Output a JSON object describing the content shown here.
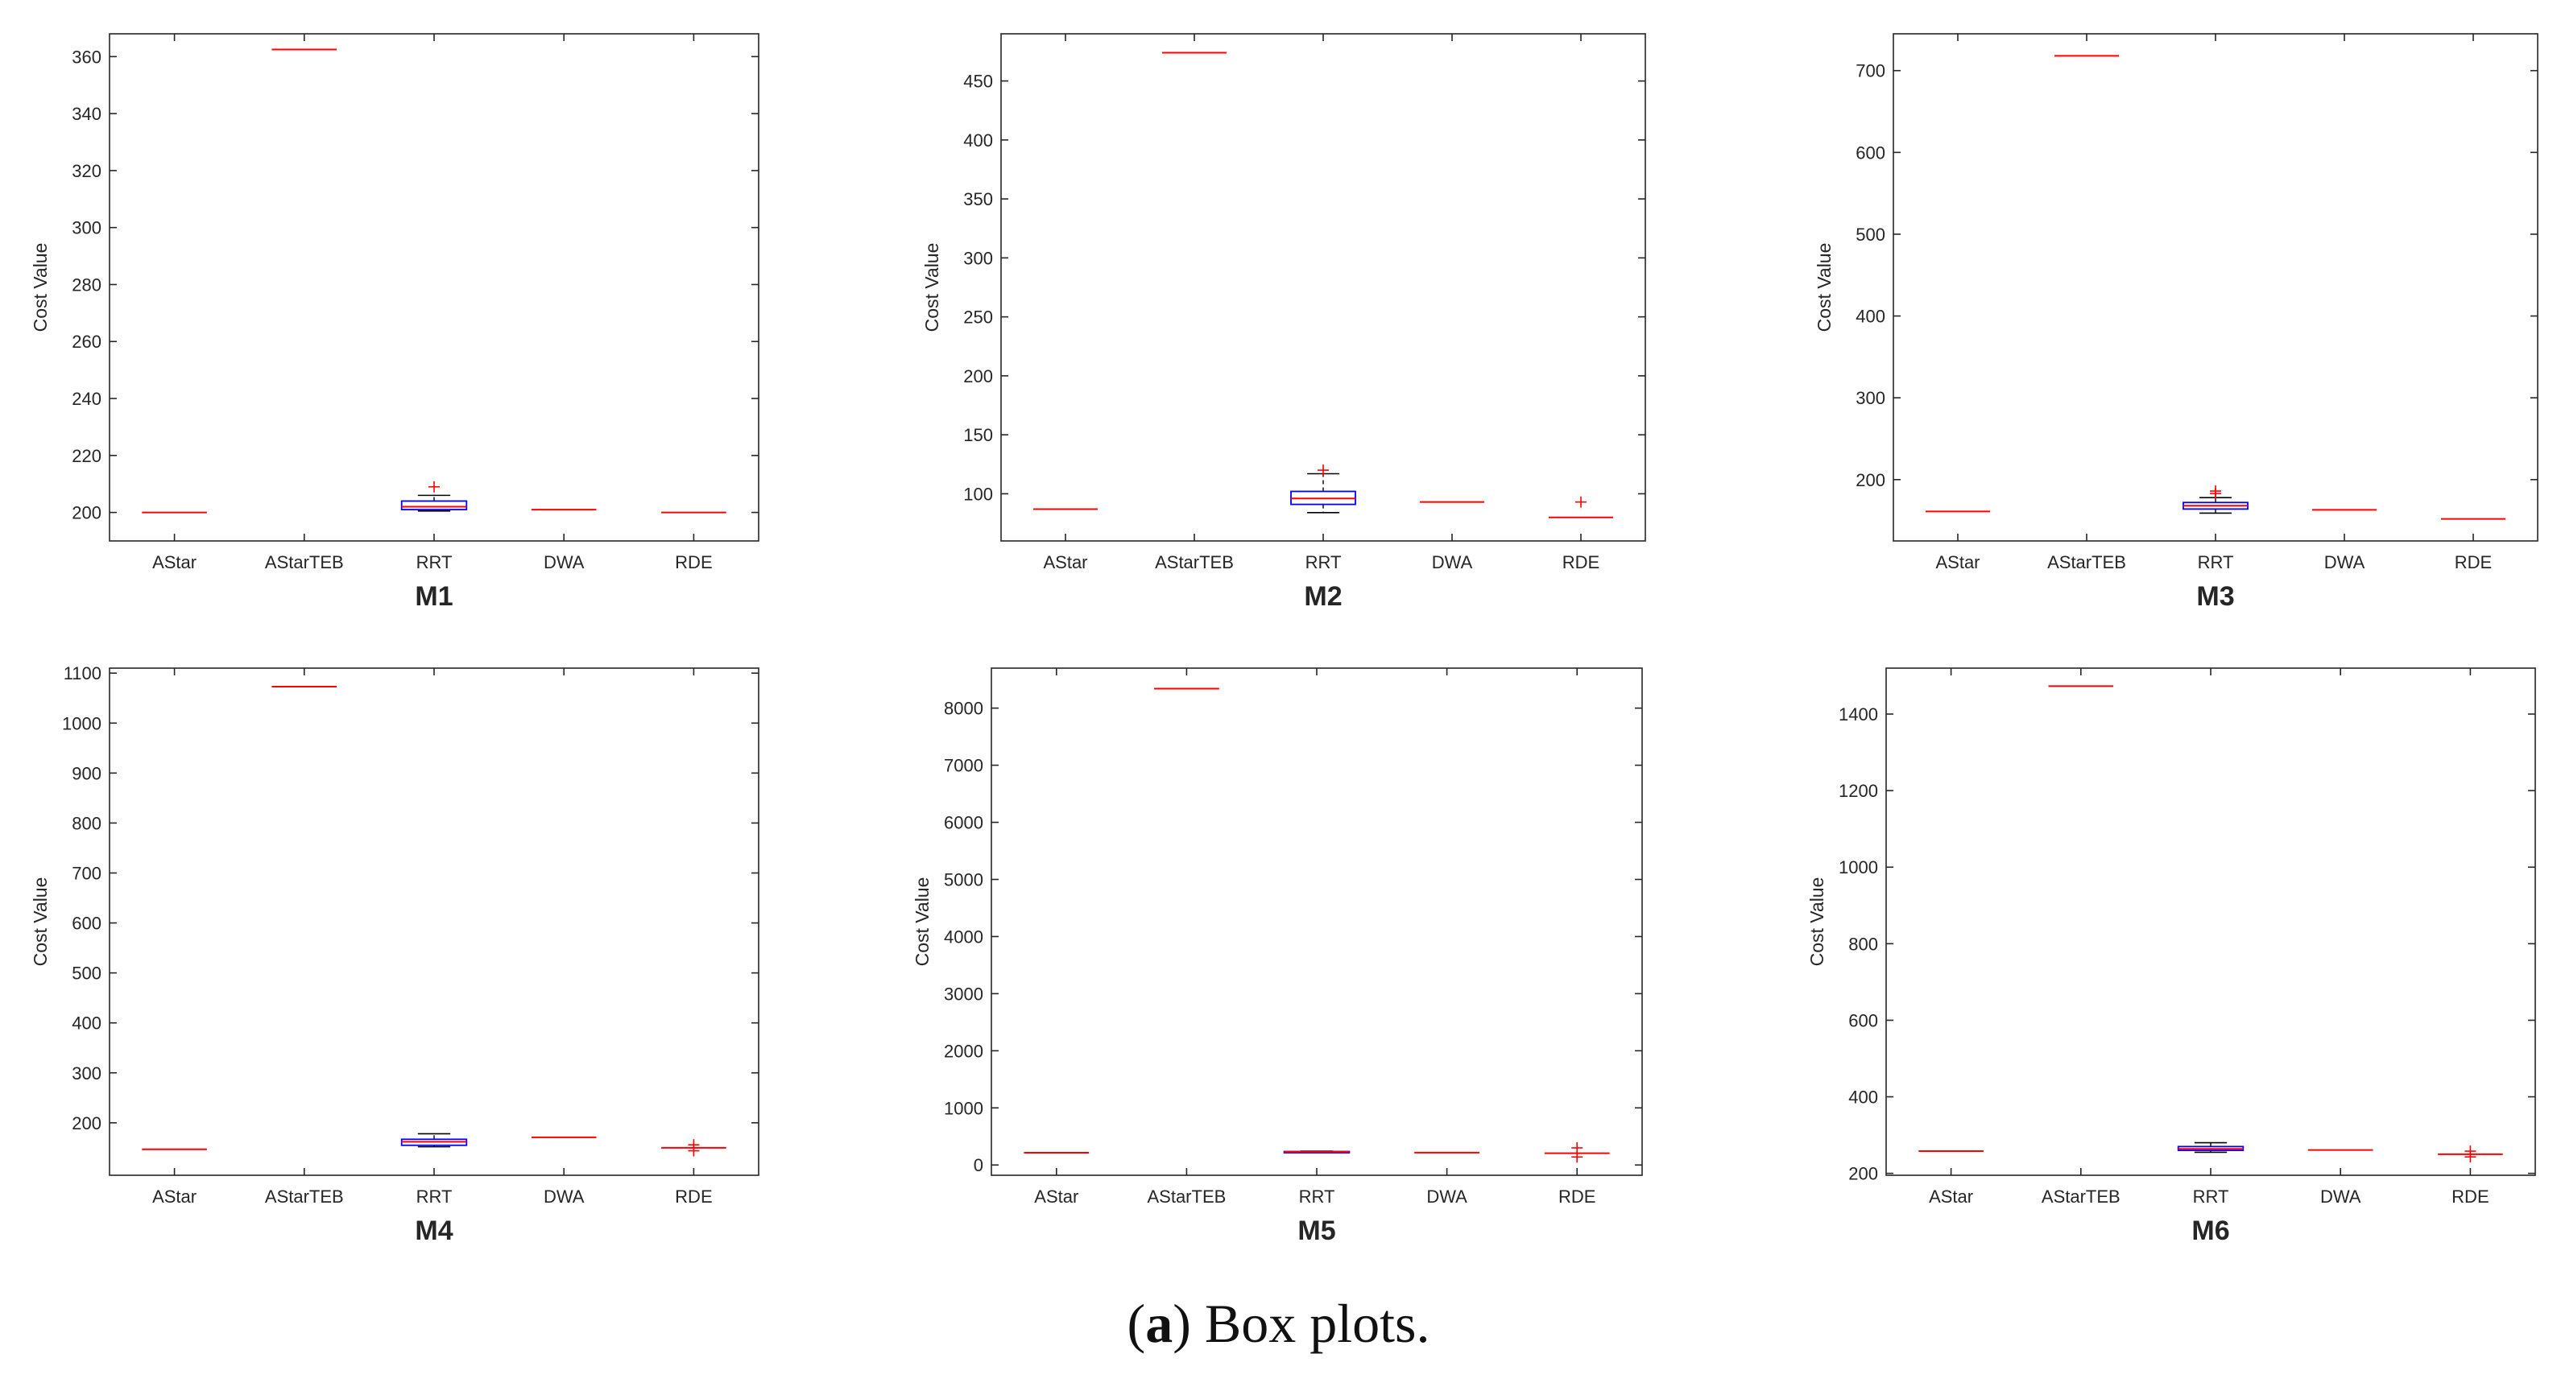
{
  "caption": {
    "open": "(",
    "tag": "a",
    "close": ")",
    "text": "Box plots."
  },
  "colors": {
    "median": "#ff0000",
    "box": "#0000ff",
    "whisker": "#000000",
    "outlier": "#ff0000",
    "axis": "#262626"
  },
  "chart_data": [
    {
      "type": "box",
      "title": "M1",
      "ylabel": "Cost Value",
      "ylim": [
        190,
        368
      ],
      "yticks": [
        200,
        220,
        240,
        260,
        280,
        300,
        320,
        340,
        360
      ],
      "categories": [
        "AStar",
        "AStarTEB",
        "RRT",
        "DWA",
        "RDE"
      ],
      "series": [
        {
          "category": "AStar",
          "min": 200,
          "q1": 200,
          "median": 200,
          "q3": 200,
          "max": 200,
          "outliers": []
        },
        {
          "category": "AStarTEB",
          "min": 362.5,
          "q1": 362.5,
          "median": 362.5,
          "q3": 362.5,
          "max": 362.5,
          "outliers": []
        },
        {
          "category": "RRT",
          "min": 200.5,
          "q1": 201,
          "median": 202,
          "q3": 204,
          "max": 206,
          "outliers": [
            209
          ]
        },
        {
          "category": "DWA",
          "min": 201,
          "q1": 201,
          "median": 201,
          "q3": 201,
          "max": 201,
          "outliers": []
        },
        {
          "category": "RDE",
          "min": 200,
          "q1": 200,
          "median": 200,
          "q3": 200,
          "max": 200,
          "outliers": []
        }
      ]
    },
    {
      "type": "box",
      "title": "M2",
      "ylabel": "Cost Value",
      "ylim": [
        60,
        490
      ],
      "yticks": [
        100,
        150,
        200,
        250,
        300,
        350,
        400,
        450
      ],
      "categories": [
        "AStar",
        "AStarTEB",
        "RRT",
        "DWA",
        "RDE"
      ],
      "series": [
        {
          "category": "AStar",
          "min": 87,
          "q1": 87,
          "median": 87,
          "q3": 87,
          "max": 87,
          "outliers": []
        },
        {
          "category": "AStarTEB",
          "min": 474,
          "q1": 474,
          "median": 474,
          "q3": 474,
          "max": 474,
          "outliers": []
        },
        {
          "category": "RRT",
          "min": 84,
          "q1": 91,
          "median": 96,
          "q3": 102,
          "max": 117,
          "outliers": [
            120
          ]
        },
        {
          "category": "DWA",
          "min": 93,
          "q1": 93,
          "median": 93,
          "q3": 93,
          "max": 93,
          "outliers": []
        },
        {
          "category": "RDE",
          "min": 80,
          "q1": 80,
          "median": 80,
          "q3": 80,
          "max": 80,
          "outliers": [
            93
          ]
        }
      ]
    },
    {
      "type": "box",
      "title": "M3",
      "ylabel": "Cost Value",
      "ylim": [
        125,
        745
      ],
      "yticks": [
        200,
        300,
        400,
        500,
        600,
        700
      ],
      "categories": [
        "AStar",
        "AStarTEB",
        "RRT",
        "DWA",
        "RDE"
      ],
      "series": [
        {
          "category": "AStar",
          "min": 161,
          "q1": 161,
          "median": 161,
          "q3": 161,
          "max": 161,
          "outliers": []
        },
        {
          "category": "AStarTEB",
          "min": 718,
          "q1": 718,
          "median": 718,
          "q3": 718,
          "max": 718,
          "outliers": []
        },
        {
          "category": "RRT",
          "min": 159,
          "q1": 164,
          "median": 168,
          "q3": 172,
          "max": 178,
          "outliers": [
            183,
            186
          ]
        },
        {
          "category": "DWA",
          "min": 163,
          "q1": 163,
          "median": 163,
          "q3": 163,
          "max": 163,
          "outliers": []
        },
        {
          "category": "RDE",
          "min": 152,
          "q1": 152,
          "median": 152,
          "q3": 152,
          "max": 152,
          "outliers": []
        }
      ]
    },
    {
      "type": "box",
      "title": "M4",
      "ylabel": "Cost Value",
      "ylim": [
        95,
        1110
      ],
      "yticks": [
        200,
        300,
        400,
        500,
        600,
        700,
        800,
        900,
        1000,
        1100
      ],
      "categories": [
        "AStar",
        "AStarTEB",
        "RRT",
        "DWA",
        "RDE"
      ],
      "series": [
        {
          "category": "AStar",
          "min": 147,
          "q1": 147,
          "median": 147,
          "q3": 147,
          "max": 147,
          "outliers": []
        },
        {
          "category": "AStarTEB",
          "min": 1073,
          "q1": 1073,
          "median": 1073,
          "q3": 1073,
          "max": 1073,
          "outliers": []
        },
        {
          "category": "RRT",
          "min": 152,
          "q1": 155,
          "median": 162,
          "q3": 167,
          "max": 178,
          "outliers": []
        },
        {
          "category": "DWA",
          "min": 171,
          "q1": 171,
          "median": 171,
          "q3": 171,
          "max": 171,
          "outliers": []
        },
        {
          "category": "RDE",
          "min": 150,
          "q1": 150,
          "median": 150,
          "q3": 150,
          "max": 150,
          "outliers": [
            144,
            156
          ]
        }
      ]
    },
    {
      "type": "box",
      "title": "M5",
      "ylabel": "Cost Value",
      "ylim": [
        -180,
        8700
      ],
      "yticks": [
        0,
        1000,
        2000,
        3000,
        4000,
        5000,
        6000,
        7000,
        8000
      ],
      "categories": [
        "AStar",
        "AStarTEB",
        "RRT",
        "DWA",
        "RDE"
      ],
      "series": [
        {
          "category": "AStar",
          "min": 215,
          "q1": 215,
          "median": 215,
          "q3": 215,
          "max": 215,
          "outliers": []
        },
        {
          "category": "AStarTEB",
          "min": 8340,
          "q1": 8340,
          "median": 8340,
          "q3": 8340,
          "max": 8340,
          "outliers": []
        },
        {
          "category": "RRT",
          "min": 222,
          "q1": 226,
          "median": 231,
          "q3": 236,
          "max": 242,
          "outliers": []
        },
        {
          "category": "DWA",
          "min": 216,
          "q1": 216,
          "median": 216,
          "q3": 216,
          "max": 216,
          "outliers": []
        },
        {
          "category": "RDE",
          "min": 205,
          "q1": 205,
          "median": 205,
          "q3": 205,
          "max": 205,
          "outliers": [
            140,
            300
          ]
        }
      ]
    },
    {
      "type": "box",
      "title": "M6",
      "ylabel": "Cost Value",
      "ylim": [
        195,
        1520
      ],
      "yticks": [
        200,
        400,
        600,
        800,
        1000,
        1200,
        1400
      ],
      "categories": [
        "AStar",
        "AStarTEB",
        "RRT",
        "DWA",
        "RDE"
      ],
      "series": [
        {
          "category": "AStar",
          "min": 258,
          "q1": 258,
          "median": 258,
          "q3": 258,
          "max": 258,
          "outliers": []
        },
        {
          "category": "AStarTEB",
          "min": 1473,
          "q1": 1473,
          "median": 1473,
          "q3": 1473,
          "max": 1473,
          "outliers": []
        },
        {
          "category": "RRT",
          "min": 255,
          "q1": 260,
          "median": 264,
          "q3": 270,
          "max": 280,
          "outliers": []
        },
        {
          "category": "DWA",
          "min": 261,
          "q1": 261,
          "median": 261,
          "q3": 261,
          "max": 261,
          "outliers": []
        },
        {
          "category": "RDE",
          "min": 250,
          "q1": 250,
          "median": 250,
          "q3": 250,
          "max": 250,
          "outliers": [
            243,
            258
          ]
        }
      ]
    }
  ]
}
